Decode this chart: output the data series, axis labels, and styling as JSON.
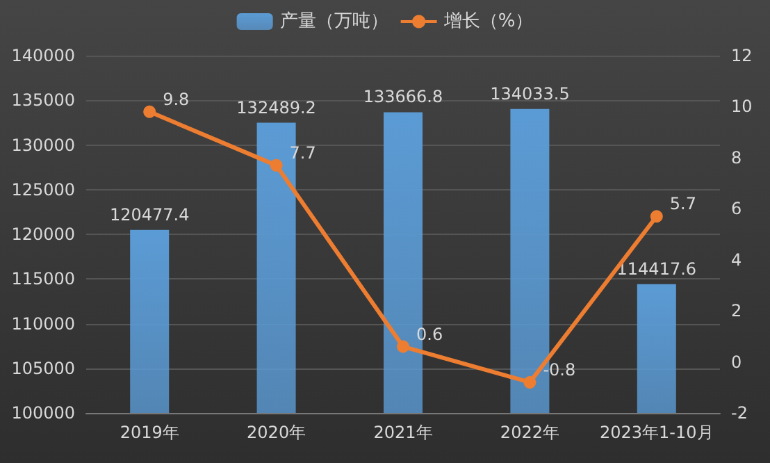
{
  "chart_data": {
    "type": "bar",
    "categories": [
      "2019年",
      "2020年",
      "2021年",
      "2022年",
      "2023年1-10月"
    ],
    "series": [
      {
        "name": "产量（万吨）",
        "color": "#5b9bd5",
        "values": [
          120477.4,
          132489.2,
          133666.8,
          134033.5,
          114417.6
        ]
      },
      {
        "name": "增长（%）",
        "type": "line",
        "axis": "y2",
        "color": "#ed7d31",
        "values": [
          9.8,
          7.7,
          0.6,
          -0.8,
          5.7
        ]
      }
    ],
    "ylim": [
      100000,
      140000
    ],
    "yticks": [
      100000,
      105000,
      110000,
      115000,
      120000,
      125000,
      130000,
      135000,
      140000
    ],
    "y2lim": [
      -2,
      12
    ],
    "y2ticks": [
      -2,
      0,
      2,
      4,
      6,
      8,
      10,
      12
    ],
    "data_labels": true,
    "grid": "y",
    "legend": "top",
    "marker": "circle"
  }
}
